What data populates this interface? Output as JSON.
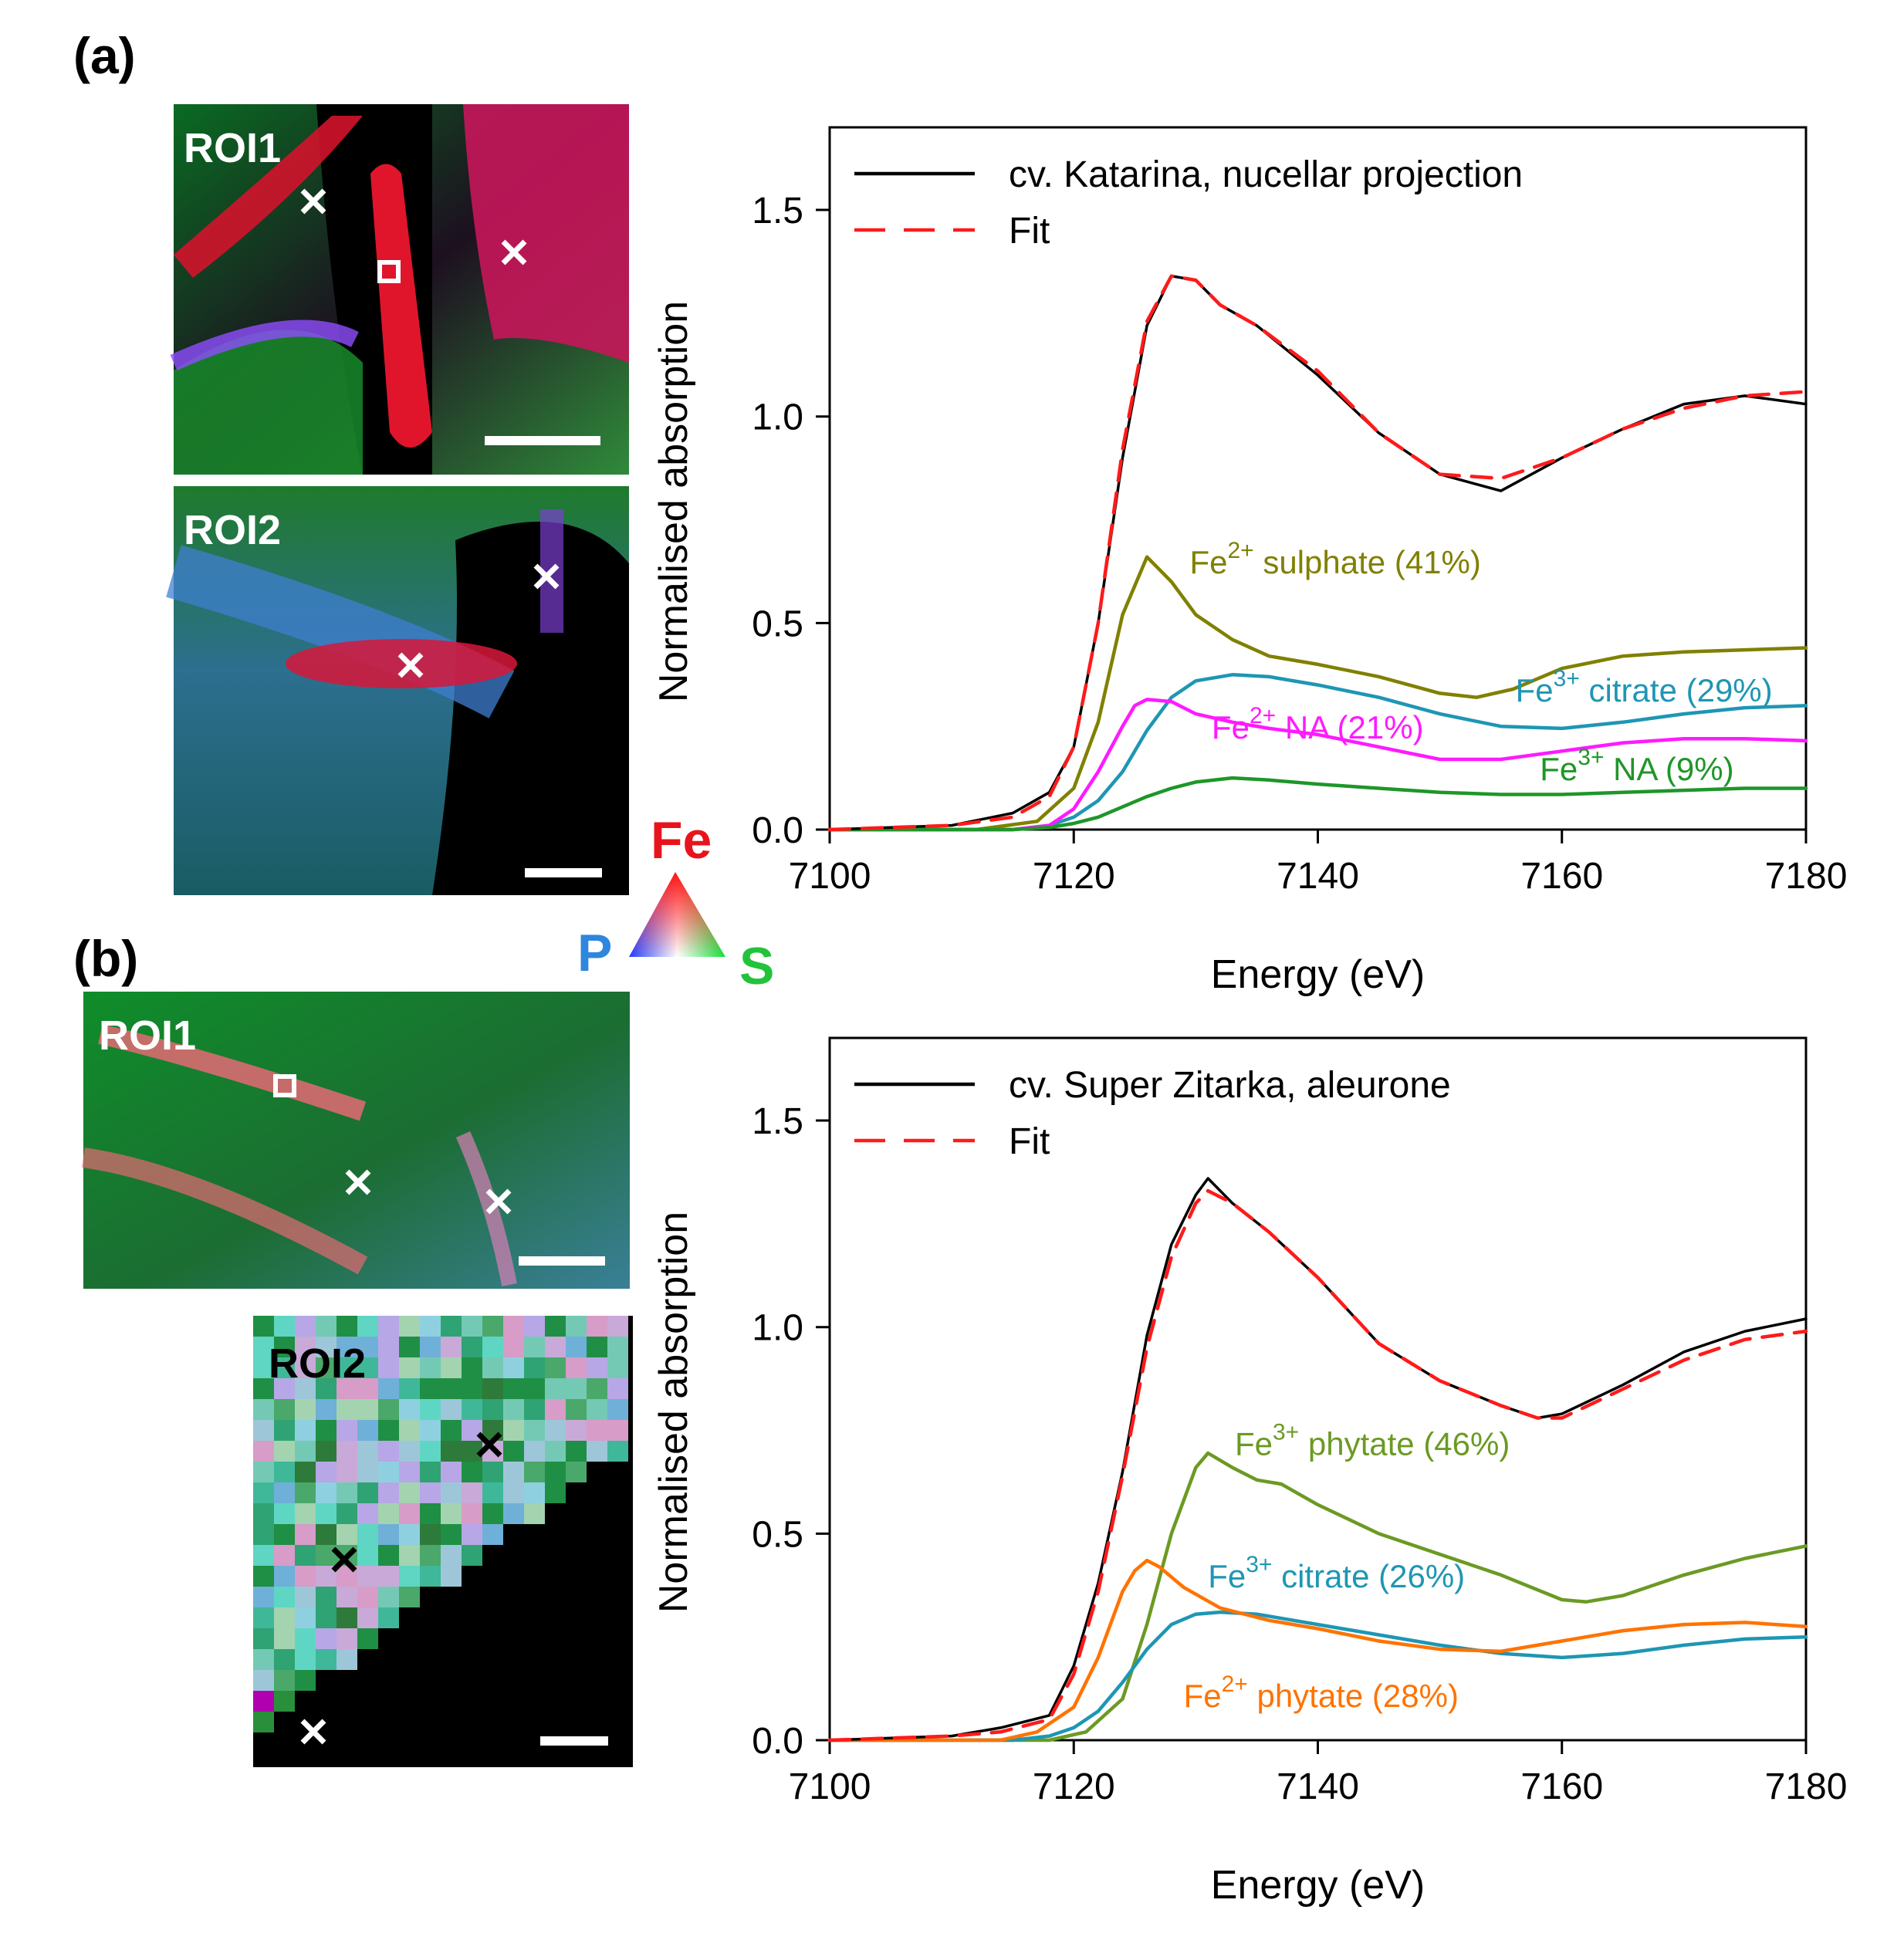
{
  "panels": {
    "a": {
      "label": "(a)",
      "roi1": {
        "label": "ROI1"
      },
      "roi2": {
        "label": "ROI2"
      }
    },
    "b": {
      "label": "(b)",
      "roi1": {
        "label": "ROI1"
      },
      "roi2": {
        "label": "ROI2"
      }
    },
    "colour_key": {
      "fe": "Fe",
      "p": "P",
      "s": "S",
      "fe_color": "#e8141c",
      "p_color": "#2e86de",
      "s_color": "#22c33a"
    }
  },
  "colors": {
    "sample": "#000000",
    "fit": "#ff1a1a",
    "fe2_sulphate": "#808000",
    "fe3_citrate": "#1e96b4",
    "fe2_na": "#ff1aff",
    "fe3_na": "#1e9628",
    "fe3_phytate": "#6b9a23",
    "fe2_phytate": "#ff7300"
  },
  "chart_data": [
    {
      "type": "line",
      "id": "a",
      "xlabel": "Energy (eV)",
      "ylabel": "Normalised absorption",
      "xlim": [
        7100,
        7180
      ],
      "ylim": [
        0,
        1.7
      ],
      "xticks": [
        7100,
        7120,
        7140,
        7160,
        7180
      ],
      "yticks": [
        0.0,
        0.5,
        1.0,
        1.5
      ],
      "xtick_labels": [
        "7100",
        "7120",
        "7140",
        "7160",
        "7180"
      ],
      "ytick_labels": [
        "0.0",
        "0.5",
        "1.0",
        "1.5"
      ],
      "legend": [
        {
          "label": "cv. Katarina, nucellar projection",
          "style": "solid",
          "color": "#000000"
        },
        {
          "label": "Fit",
          "style": "dashed",
          "color": "#ff1a1a"
        }
      ],
      "series": [
        {
          "name": "cv. Katarina, nucellar projection",
          "role": "data",
          "color": "#000000",
          "x": [
            7100,
            7110,
            7115,
            7118,
            7120,
            7122,
            7124,
            7126,
            7128,
            7130,
            7132,
            7135,
            7140,
            7145,
            7150,
            7155,
            7160,
            7165,
            7170,
            7175,
            7180
          ],
          "y": [
            0.0,
            0.01,
            0.04,
            0.09,
            0.2,
            0.5,
            0.9,
            1.22,
            1.34,
            1.33,
            1.27,
            1.22,
            1.1,
            0.96,
            0.86,
            0.82,
            0.9,
            0.97,
            1.03,
            1.05,
            1.03
          ]
        },
        {
          "name": "Fit",
          "role": "fit",
          "color": "#ff1a1a",
          "x": [
            7100,
            7110,
            7115,
            7118,
            7120,
            7122,
            7124,
            7126,
            7128,
            7130,
            7132,
            7135,
            7140,
            7145,
            7150,
            7155,
            7160,
            7165,
            7170,
            7175,
            7180
          ],
          "y": [
            0.0,
            0.01,
            0.03,
            0.08,
            0.2,
            0.5,
            0.92,
            1.23,
            1.34,
            1.33,
            1.27,
            1.22,
            1.11,
            0.96,
            0.86,
            0.85,
            0.9,
            0.97,
            1.02,
            1.05,
            1.06
          ]
        },
        {
          "name": "Fe2+ sulphate",
          "role": "component",
          "color": "#808000",
          "label_base": "Fe",
          "label_sup": "2+",
          "label_rest": " sulphate (41%)",
          "label_x": 7129.5,
          "label_y": 0.62,
          "label_anchor": "start",
          "x": [
            7100,
            7112,
            7117,
            7120,
            7122,
            7124,
            7126,
            7128,
            7130,
            7133,
            7136,
            7140,
            7145,
            7150,
            7153,
            7156,
            7160,
            7165,
            7170,
            7175,
            7180
          ],
          "y": [
            0.0,
            0.0,
            0.02,
            0.1,
            0.26,
            0.52,
            0.66,
            0.6,
            0.52,
            0.46,
            0.42,
            0.4,
            0.37,
            0.33,
            0.32,
            0.34,
            0.39,
            0.42,
            0.43,
            0.435,
            0.44
          ]
        },
        {
          "name": "Fe3+ citrate",
          "role": "component",
          "color": "#1e96b4",
          "label_base": "Fe",
          "label_sup": "3+",
          "label_rest": " citrate (29%)",
          "label_x": 7156.2,
          "label_y": 0.31,
          "label_anchor": "start",
          "x": [
            7100,
            7115,
            7118,
            7120,
            7122,
            7124,
            7126,
            7128,
            7130,
            7133,
            7136,
            7140,
            7145,
            7150,
            7155,
            7160,
            7165,
            7170,
            7175,
            7180
          ],
          "y": [
            0.0,
            0.0,
            0.01,
            0.03,
            0.07,
            0.14,
            0.24,
            0.32,
            0.36,
            0.375,
            0.37,
            0.35,
            0.32,
            0.28,
            0.25,
            0.245,
            0.26,
            0.28,
            0.295,
            0.3
          ]
        },
        {
          "name": "Fe2+ NA",
          "role": "component",
          "color": "#ff1aff",
          "label_base": "Fe",
          "label_sup": "2+",
          "label_rest": " NA (21%)",
          "label_x": 7131.3,
          "label_y": 0.22,
          "label_anchor": "start",
          "x": [
            7100,
            7115,
            7118,
            7120,
            7122,
            7124,
            7125,
            7126,
            7128,
            7130,
            7133,
            7136,
            7140,
            7145,
            7150,
            7155,
            7160,
            7165,
            7170,
            7175,
            7180
          ],
          "y": [
            0.0,
            0.0,
            0.01,
            0.05,
            0.14,
            0.25,
            0.3,
            0.315,
            0.31,
            0.28,
            0.26,
            0.245,
            0.23,
            0.2,
            0.17,
            0.17,
            0.19,
            0.21,
            0.22,
            0.22,
            0.215
          ]
        },
        {
          "name": "Fe3+ NA",
          "role": "component",
          "color": "#1e9628",
          "label_base": "Fe",
          "label_sup": "3+",
          "label_rest": " NA (9%)",
          "label_x": 7158.2,
          "label_y": 0.12,
          "label_anchor": "start",
          "x": [
            7100,
            7115,
            7118,
            7120,
            7122,
            7124,
            7126,
            7128,
            7130,
            7133,
            7136,
            7140,
            7145,
            7150,
            7155,
            7160,
            7165,
            7170,
            7175,
            7180
          ],
          "y": [
            0.0,
            0.0,
            0.005,
            0.015,
            0.03,
            0.055,
            0.08,
            0.1,
            0.115,
            0.125,
            0.12,
            0.11,
            0.1,
            0.09,
            0.085,
            0.085,
            0.09,
            0.095,
            0.1,
            0.1
          ]
        }
      ]
    },
    {
      "type": "line",
      "id": "b",
      "xlabel": "Energy (eV)",
      "ylabel": "Normalised absorption",
      "xlim": [
        7100,
        7180
      ],
      "ylim": [
        0,
        1.7
      ],
      "xticks": [
        7100,
        7120,
        7140,
        7160,
        7180
      ],
      "yticks": [
        0.0,
        0.5,
        1.0,
        1.5
      ],
      "xtick_labels": [
        "7100",
        "7120",
        "7140",
        "7160",
        "7180"
      ],
      "ytick_labels": [
        "0.0",
        "0.5",
        "1.0",
        "1.5"
      ],
      "legend": [
        {
          "label": "cv. Super Zitarka, aleurone",
          "style": "solid",
          "color": "#000000"
        },
        {
          "label": "Fit",
          "style": "dashed",
          "color": "#ff1a1a"
        }
      ],
      "series": [
        {
          "name": "cv. Super Zitarka, aleurone",
          "role": "data",
          "color": "#000000",
          "x": [
            7100,
            7110,
            7114,
            7118,
            7120,
            7122,
            7124,
            7126,
            7128,
            7130,
            7131,
            7133,
            7136,
            7140,
            7145,
            7150,
            7155,
            7158,
            7160,
            7165,
            7170,
            7175,
            7180
          ],
          "y": [
            0.0,
            0.01,
            0.03,
            0.06,
            0.18,
            0.38,
            0.65,
            0.98,
            1.2,
            1.32,
            1.36,
            1.3,
            1.23,
            1.12,
            0.96,
            0.87,
            0.81,
            0.78,
            0.79,
            0.86,
            0.94,
            0.99,
            1.02
          ]
        },
        {
          "name": "Fit",
          "role": "fit",
          "color": "#ff1a1a",
          "x": [
            7100,
            7110,
            7114,
            7118,
            7120,
            7122,
            7124,
            7126,
            7128,
            7130,
            7131,
            7133,
            7136,
            7140,
            7145,
            7150,
            7155,
            7158,
            7160,
            7165,
            7170,
            7175,
            7180
          ],
          "y": [
            0.0,
            0.01,
            0.02,
            0.05,
            0.16,
            0.36,
            0.64,
            0.95,
            1.17,
            1.3,
            1.33,
            1.3,
            1.23,
            1.12,
            0.96,
            0.87,
            0.81,
            0.78,
            0.78,
            0.85,
            0.92,
            0.97,
            0.99
          ]
        },
        {
          "name": "Fe3+ phytate",
          "role": "component",
          "color": "#6b9a23",
          "label_base": "Fe",
          "label_sup": "3+",
          "label_rest": " phytate (46%)",
          "label_x": 7133.2,
          "label_y": 0.69,
          "label_anchor": "start",
          "x": [
            7100,
            7118,
            7121,
            7124,
            7126,
            7128,
            7130,
            7131,
            7133,
            7135,
            7137,
            7140,
            7145,
            7150,
            7155,
            7160,
            7162,
            7165,
            7170,
            7175,
            7180
          ],
          "y": [
            0.0,
            0.0,
            0.02,
            0.1,
            0.28,
            0.5,
            0.66,
            0.695,
            0.66,
            0.63,
            0.62,
            0.57,
            0.5,
            0.45,
            0.4,
            0.34,
            0.335,
            0.35,
            0.4,
            0.44,
            0.47
          ]
        },
        {
          "name": "Fe3+ citrate",
          "role": "component",
          "color": "#1e96b4",
          "label_base": "Fe",
          "label_sup": "3+",
          "label_rest": " citrate (26%)",
          "label_x": 7131.0,
          "label_y": 0.37,
          "label_anchor": "start",
          "x": [
            7100,
            7115,
            7118,
            7120,
            7122,
            7124,
            7126,
            7128,
            7130,
            7132,
            7135,
            7140,
            7145,
            7150,
            7155,
            7160,
            7165,
            7170,
            7175,
            7180
          ],
          "y": [
            0.0,
            0.0,
            0.01,
            0.03,
            0.07,
            0.14,
            0.22,
            0.28,
            0.305,
            0.31,
            0.305,
            0.28,
            0.255,
            0.23,
            0.21,
            0.2,
            0.21,
            0.23,
            0.245,
            0.25
          ]
        },
        {
          "name": "Fe2+ phytate",
          "role": "component",
          "color": "#ff7300",
          "label_base": "Fe",
          "label_sup": "2+",
          "label_rest": " phytate (28%)",
          "label_x": 7129.0,
          "label_y": 0.08,
          "label_anchor": "start",
          "x": [
            7100,
            7114,
            7117,
            7120,
            7122,
            7124,
            7125,
            7126,
            7127,
            7129,
            7132,
            7136,
            7140,
            7145,
            7150,
            7155,
            7160,
            7165,
            7170,
            7175,
            7180
          ],
          "y": [
            0.0,
            0.0,
            0.02,
            0.08,
            0.2,
            0.36,
            0.41,
            0.435,
            0.42,
            0.37,
            0.32,
            0.29,
            0.27,
            0.24,
            0.22,
            0.215,
            0.24,
            0.265,
            0.28,
            0.285,
            0.275
          ]
        }
      ]
    }
  ]
}
